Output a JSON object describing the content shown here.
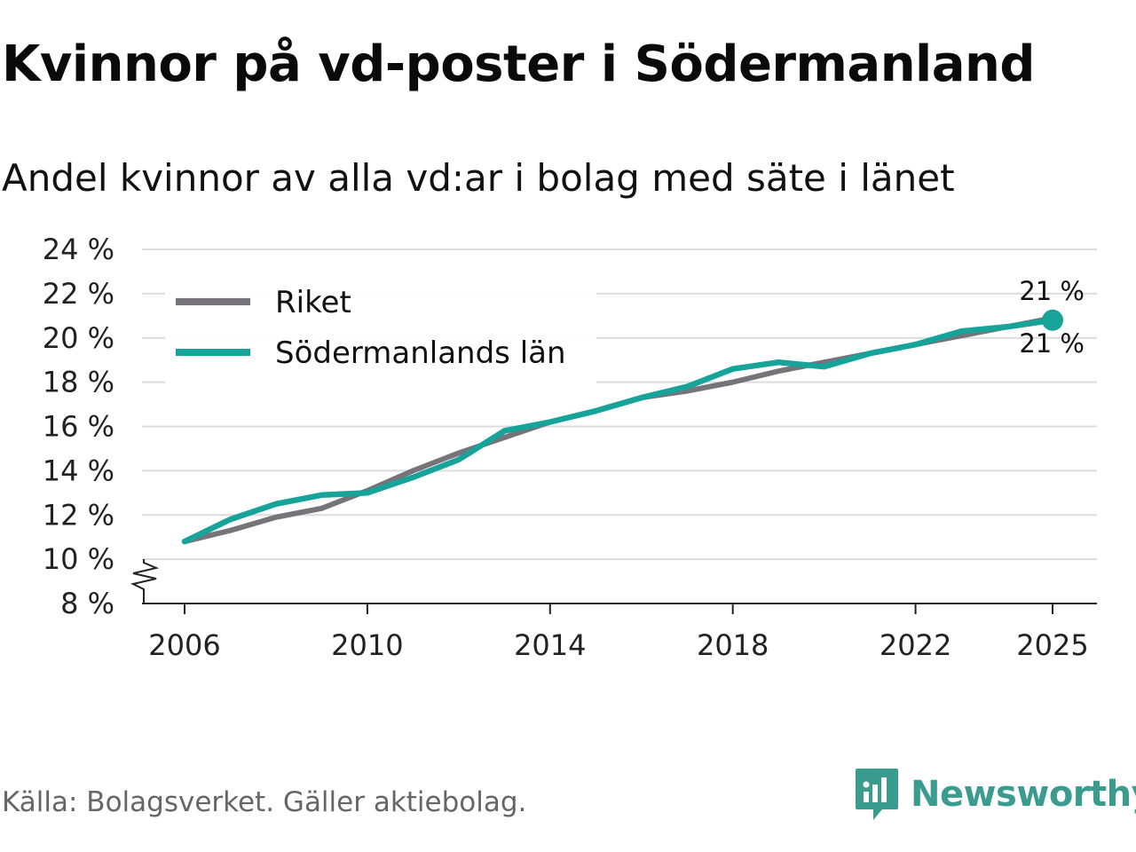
{
  "header": {
    "title": "Kvinnor på vd-poster i Södermanland",
    "subtitle": "Andel kvinnor av alla vd:ar i bolag med säte i länet"
  },
  "footer": {
    "source": "Källa: Bolagsverket. Gäller aktiebolag.",
    "brand": "Newsworthy"
  },
  "colors": {
    "riket": "#76737a",
    "lan": "#16a39a",
    "grid": "#dcdcdc",
    "axis": "#222222",
    "brand": "#3a9c8e"
  },
  "chart_data": {
    "type": "line",
    "title": "Kvinnor på vd-poster i Södermanland",
    "subtitle": "Andel kvinnor av alla vd:ar i bolag med säte i länet",
    "xlabel": "",
    "ylabel": "",
    "x": [
      2006,
      2007,
      2008,
      2009,
      2010,
      2011,
      2012,
      2013,
      2014,
      2015,
      2016,
      2017,
      2018,
      2019,
      2020,
      2021,
      2022,
      2023,
      2024,
      2025
    ],
    "series": [
      {
        "name": "Riket",
        "values": [
          10.8,
          11.3,
          11.9,
          12.3,
          13.1,
          14.0,
          14.8,
          15.5,
          16.2,
          16.7,
          17.3,
          17.6,
          18.0,
          18.5,
          18.9,
          19.3,
          19.7,
          20.1,
          20.5,
          20.9
        ]
      },
      {
        "name": "Södermanlands län",
        "values": [
          10.8,
          11.8,
          12.5,
          12.9,
          13.0,
          13.7,
          14.5,
          15.8,
          16.2,
          16.7,
          17.3,
          17.8,
          18.6,
          18.9,
          18.7,
          19.3,
          19.7,
          20.3,
          20.5,
          20.8
        ]
      }
    ],
    "y_ticks": [
      8,
      10,
      12,
      14,
      16,
      18,
      20,
      22,
      24
    ],
    "y_tick_labels": [
      "8 %",
      "10 %",
      "12 %",
      "14 %",
      "16 %",
      "18 %",
      "20 %",
      "22 %",
      "24 %"
    ],
    "x_ticks": [
      2006,
      2010,
      2014,
      2018,
      2022,
      2025
    ],
    "x_tick_labels": [
      "2006",
      "2010",
      "2014",
      "2018",
      "2022",
      "2025"
    ],
    "ylim": [
      8,
      24
    ],
    "xlim": [
      2006,
      2025
    ],
    "grid": true,
    "y_axis_break": true,
    "legend": {
      "placement": "top-left",
      "entries": [
        "Riket",
        "Södermanlands län"
      ]
    },
    "annotations": [
      {
        "series": "Södermanlands län",
        "x": 2025,
        "label": "21 %",
        "position": "above"
      },
      {
        "series": "Riket",
        "x": 2025,
        "label": "21 %",
        "position": "below"
      }
    ]
  }
}
